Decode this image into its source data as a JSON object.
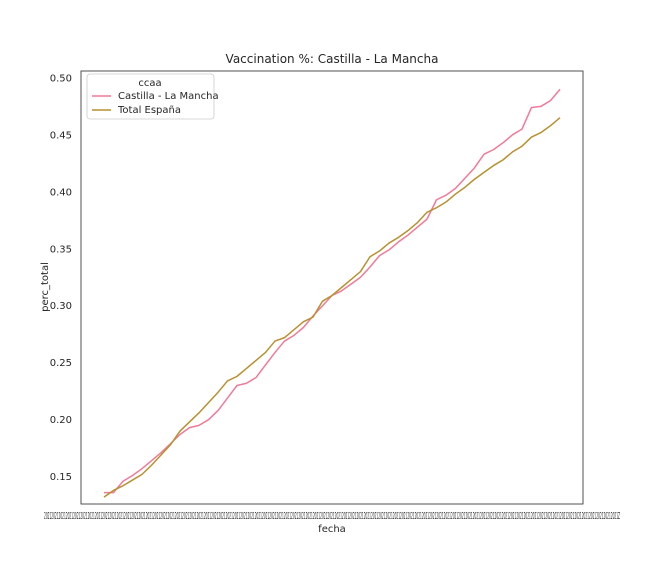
{
  "chart_data": {
    "type": "line",
    "title": "Vaccination %: Castilla - La Mancha",
    "xlabel": "fecha",
    "ylabel": "perc_total",
    "ylim": [
      0.126,
      0.506
    ],
    "yticks": [
      "0.15",
      "0.20",
      "0.25",
      "0.30",
      "0.35",
      "0.40",
      "0.45",
      "0.50"
    ],
    "xtick_text": "2021202120212021202120212021202120212021202120212021202120212021202120212021202120212021202120212021202120212021202120212021202120212021202120212021202120212021202120212021202120212021202120212021202120212021202120212021202120212021202120212021202120212021202120212021202120212021202120212021202120212021202120212021Z",
    "grid": false,
    "legend": {
      "title": "ccaa",
      "placement": "top-left"
    },
    "series": [
      {
        "name": "Castilla - La Mancha",
        "color": "#f07a9a",
        "values": [
          0.136,
          0.136,
          0.146,
          0.151,
          0.157,
          0.164,
          0.171,
          0.179,
          0.187,
          0.193,
          0.195,
          0.2,
          0.208,
          0.219,
          0.23,
          0.232,
          0.237,
          0.248,
          0.259,
          0.269,
          0.274,
          0.281,
          0.291,
          0.3,
          0.309,
          0.313,
          0.319,
          0.325,
          0.334,
          0.344,
          0.349,
          0.356,
          0.362,
          0.369,
          0.376,
          0.393,
          0.397,
          0.403,
          0.412,
          0.421,
          0.433,
          0.437,
          0.443,
          0.45,
          0.455,
          0.474,
          0.475,
          0.48,
          0.49
        ]
      },
      {
        "name": "Total España",
        "color": "#b6912e",
        "values": [
          0.132,
          0.138,
          0.142,
          0.147,
          0.152,
          0.16,
          0.169,
          0.178,
          0.19,
          0.198,
          0.206,
          0.215,
          0.224,
          0.234,
          0.238,
          0.245,
          0.252,
          0.259,
          0.269,
          0.272,
          0.279,
          0.286,
          0.29,
          0.304,
          0.309,
          0.316,
          0.323,
          0.33,
          0.343,
          0.348,
          0.355,
          0.36,
          0.366,
          0.373,
          0.382,
          0.386,
          0.391,
          0.398,
          0.404,
          0.411,
          0.417,
          0.423,
          0.428,
          0.435,
          0.44,
          0.448,
          0.452,
          0.458,
          0.465
        ]
      }
    ]
  }
}
